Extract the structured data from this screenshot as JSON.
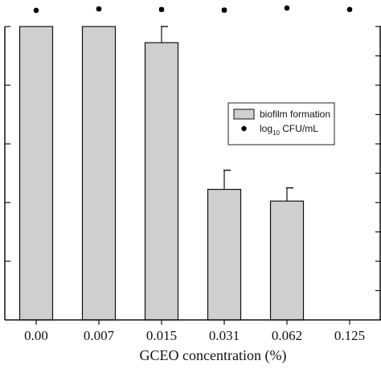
{
  "chart_data": {
    "type": "bar",
    "categories": [
      "0.00",
      "0.007",
      "0.015",
      "0.031",
      "0.062",
      "0.125"
    ],
    "ylim": [
      0,
      100
    ],
    "y2lim": [
      0,
      10
    ],
    "xlabel": "GCEO concentration (%)",
    "series": [
      {
        "name": "biofilm formation",
        "kind": "bar",
        "axis": "left",
        "values": [
          100,
          100,
          94.5,
          44.5,
          40.5,
          0
        ],
        "errors": [
          0,
          0,
          5.5,
          6.5,
          4.5,
          0
        ],
        "color": "#cdd0cc"
      },
      {
        "name": "log10 CFU/mL",
        "kind": "point",
        "axis": "right",
        "values": [
          10.55,
          10.6,
          10.58,
          10.56,
          10.63,
          10.58
        ],
        "errors": [
          0,
          0.05,
          0.05,
          0.06,
          0.04,
          0.04
        ],
        "color": "#000000"
      }
    ],
    "legend": {
      "position": "right",
      "bar_label": "biofilm formation",
      "point_label_main": "log",
      "point_label_sub": "10",
      "point_label_rest": " CFU/mL"
    }
  }
}
